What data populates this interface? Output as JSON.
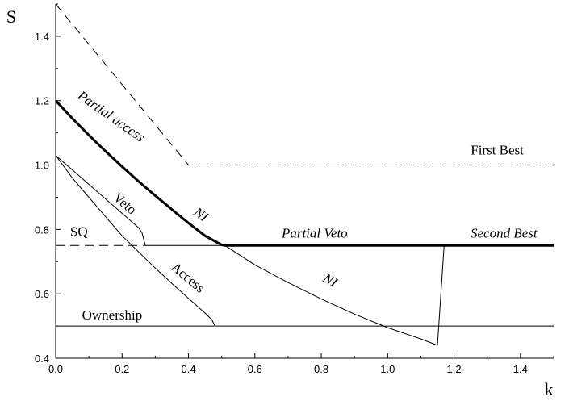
{
  "chart_data": {
    "type": "line",
    "xlabel": "k",
    "ylabel": "S",
    "xlim": [
      0,
      1.5
    ],
    "ylim": [
      0.4,
      1.5
    ],
    "x_ticks": [
      "0.0",
      "0.2",
      "0.4",
      "0.6",
      "0.8",
      "1.0",
      "1.2",
      "1.4"
    ],
    "y_ticks": [
      "0.4",
      "0.6",
      "0.8",
      "1.0",
      "1.2",
      "1.4"
    ],
    "grid": false,
    "legend": "none",
    "series": [
      {
        "name": "First Best",
        "style": "dashed",
        "width": 1,
        "points": [
          [
            0,
            1.5
          ],
          [
            0.1,
            1.375
          ],
          [
            0.2,
            1.25
          ],
          [
            0.3,
            1.125
          ],
          [
            0.4,
            1.0
          ],
          [
            1.5,
            1.0
          ]
        ]
      },
      {
        "name": "SQ",
        "style": "dashed",
        "width": 1,
        "points": [
          [
            0,
            0.75
          ],
          [
            0.27,
            0.75
          ]
        ]
      },
      {
        "name": "Partial access",
        "style": "solid",
        "width": 3,
        "points": [
          [
            0,
            1.2
          ],
          [
            0.05,
            1.145
          ],
          [
            0.1,
            1.093
          ],
          [
            0.15,
            1.043
          ],
          [
            0.2,
            0.995
          ],
          [
            0.25,
            0.949
          ],
          [
            0.3,
            0.905
          ],
          [
            0.35,
            0.862
          ],
          [
            0.4,
            0.82
          ],
          [
            0.45,
            0.78
          ],
          [
            0.5,
            0.752
          ],
          [
            0.51,
            0.75
          ],
          [
            1.5,
            0.75
          ]
        ]
      },
      {
        "name": "Veto",
        "style": "solid",
        "width": 1,
        "points": [
          [
            0,
            1.03
          ],
          [
            0.05,
            0.985
          ],
          [
            0.1,
            0.94
          ],
          [
            0.15,
            0.895
          ],
          [
            0.2,
            0.85
          ],
          [
            0.25,
            0.805
          ],
          [
            0.26,
            0.79
          ],
          [
            0.27,
            0.75
          ],
          [
            0.51,
            0.75
          ]
        ]
      },
      {
        "name": "Access",
        "style": "solid",
        "width": 1,
        "points": [
          [
            0,
            1.03
          ],
          [
            0.05,
            0.96
          ],
          [
            0.1,
            0.9
          ],
          [
            0.15,
            0.84
          ],
          [
            0.2,
            0.78
          ],
          [
            0.25,
            0.73
          ],
          [
            0.3,
            0.68
          ],
          [
            0.35,
            0.632
          ],
          [
            0.4,
            0.586
          ],
          [
            0.45,
            0.54
          ],
          [
            0.47,
            0.52
          ],
          [
            0.48,
            0.5
          ]
        ]
      },
      {
        "name": "NI",
        "style": "solid",
        "width": 1,
        "points": [
          [
            0.51,
            0.75
          ],
          [
            0.6,
            0.69
          ],
          [
            0.7,
            0.635
          ],
          [
            0.8,
            0.584
          ],
          [
            0.9,
            0.537
          ],
          [
            1.0,
            0.495
          ],
          [
            1.1,
            0.46
          ],
          [
            1.15,
            0.44
          ],
          [
            1.17,
            0.75
          ]
        ]
      },
      {
        "name": "Ownership",
        "style": "solid",
        "width": 1,
        "points": [
          [
            0,
            0.5
          ],
          [
            1.5,
            0.5
          ]
        ]
      }
    ],
    "annotations": [
      {
        "text": "First Best",
        "x": 1.33,
        "y": 1.033,
        "italic": false,
        "rotate": 0
      },
      {
        "text": "Second Best",
        "x": 1.35,
        "y": 0.775,
        "italic": true,
        "rotate": 0
      },
      {
        "text": "Partial Veto",
        "x": 0.78,
        "y": 0.775,
        "italic": true,
        "rotate": 0
      },
      {
        "text": "SQ",
        "x": 0.07,
        "y": 0.78,
        "italic": false,
        "rotate": 0
      },
      {
        "text": "Ownership",
        "x": 0.17,
        "y": 0.52,
        "italic": false,
        "rotate": 0
      },
      {
        "text": "Partial access",
        "x": 0.16,
        "y": 1.14,
        "italic": true,
        "rotate": 35
      },
      {
        "text": "NI",
        "x": 0.43,
        "y": 0.835,
        "italic": true,
        "rotate": 35
      },
      {
        "text": "Veto",
        "x": 0.2,
        "y": 0.87,
        "italic": false,
        "rotate": 40
      },
      {
        "text": "Access",
        "x": 0.39,
        "y": 0.64,
        "italic": false,
        "rotate": 40
      },
      {
        "text": "NI",
        "x": 0.82,
        "y": 0.63,
        "italic": true,
        "rotate": 30
      }
    ]
  }
}
